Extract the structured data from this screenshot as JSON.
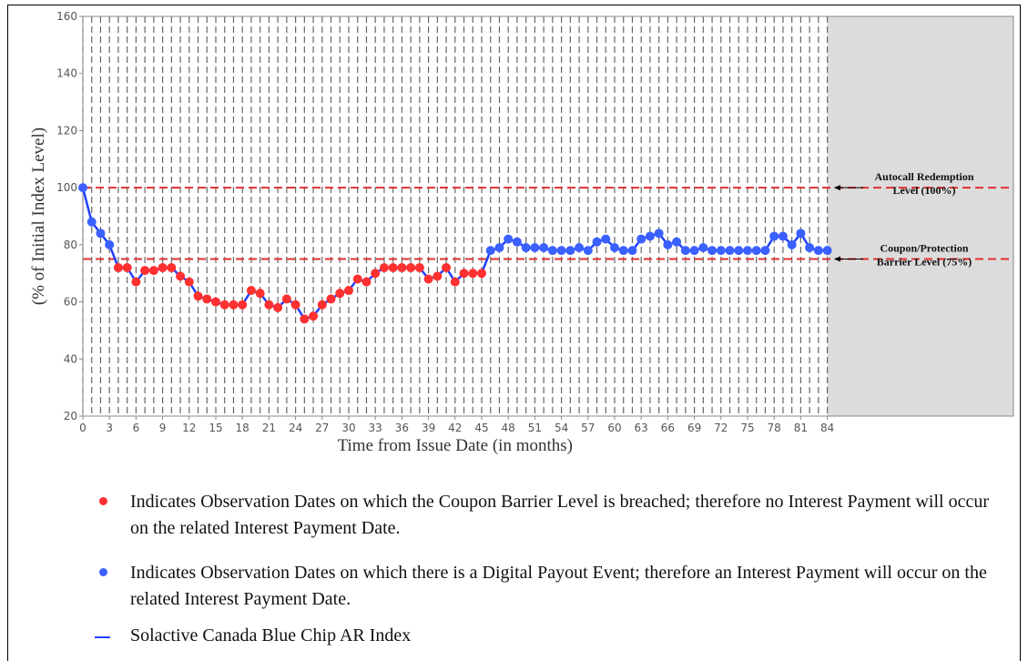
{
  "chart_data": {
    "type": "line",
    "x_label": "Time from Issue Date (in months)",
    "y_label": "(% of Initial Index Level)",
    "x": [
      0,
      1,
      2,
      3,
      4,
      5,
      6,
      7,
      8,
      9,
      10,
      11,
      12,
      13,
      14,
      15,
      16,
      17,
      18,
      19,
      20,
      21,
      22,
      23,
      24,
      25,
      26,
      27,
      28,
      29,
      30,
      31,
      32,
      33,
      34,
      35,
      36,
      37,
      38,
      39,
      40,
      41,
      42,
      43,
      44,
      45,
      46,
      47,
      48,
      49,
      50,
      51,
      52,
      53,
      54,
      55,
      56,
      57,
      58,
      59,
      60,
      61,
      62,
      63,
      64,
      65,
      66,
      67,
      68,
      69,
      70,
      71,
      72,
      73,
      74,
      75,
      76,
      77,
      78,
      79,
      80,
      81,
      82,
      83,
      84
    ],
    "series": [
      {
        "name": "Solactive Canada Blue Chip AR Index",
        "color": "#2040ff",
        "values": [
          100,
          88,
          84,
          80,
          72,
          72,
          67,
          71,
          71,
          72,
          72,
          69,
          67,
          62,
          61,
          60,
          59,
          59,
          59,
          64,
          63,
          59,
          58,
          61,
          59,
          54,
          55,
          59,
          61,
          63,
          64,
          68,
          67,
          70,
          72,
          72,
          72,
          72,
          72,
          68,
          69,
          72,
          67,
          70,
          70,
          70,
          78,
          79,
          82,
          81,
          79,
          79,
          79,
          78,
          78,
          78,
          79,
          78,
          81,
          82,
          79,
          78,
          78,
          82,
          83,
          84,
          80,
          81,
          78,
          78,
          79,
          78,
          78,
          78,
          78,
          78,
          78,
          78,
          83,
          83,
          80,
          84,
          79,
          78,
          78
        ]
      }
    ],
    "breach_color": "#ff3030",
    "payout_color": "#3a60ff",
    "xlim": [
      0,
      105
    ],
    "ylim": [
      20,
      160
    ],
    "xticks": [
      0,
      3,
      6,
      9,
      12,
      15,
      18,
      21,
      24,
      27,
      30,
      33,
      36,
      39,
      42,
      45,
      48,
      51,
      54,
      57,
      60,
      63,
      66,
      69,
      72,
      75,
      78,
      81,
      84
    ],
    "yticks": [
      20,
      40,
      60,
      80,
      100,
      120,
      140,
      160
    ],
    "shaded_from": 84,
    "reference_lines": [
      {
        "value": 100,
        "label": [
          "Autocall Redemption",
          "Level (100%)"
        ]
      },
      {
        "value": 75,
        "label": [
          "Coupon/Protection",
          "Barrier Level (75%)"
        ]
      }
    ],
    "barrier": 75,
    "legend": [
      "Indicates Observation Dates on which the Coupon Barrier Level is breached; therefore no Interest Payment will occur on the related Interest Payment Date.",
      "Indicates Observation Dates on which there is a Digital Payout Event; therefore an Interest Payment will occur on the related Interest Payment Date.",
      "Solactive Canada Blue Chip AR Index"
    ]
  }
}
